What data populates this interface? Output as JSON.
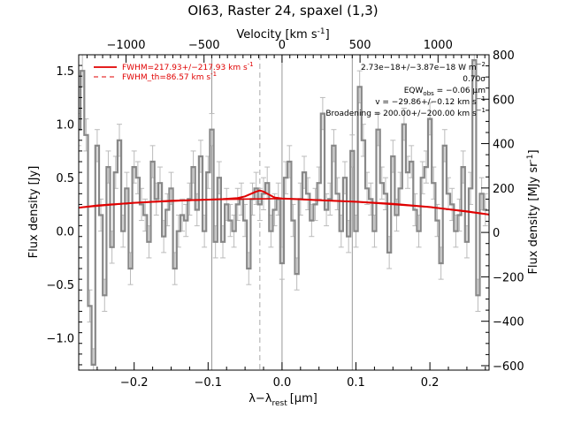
{
  "chart_data": {
    "type": "line",
    "title": "OI63, Raster 24, spaxel (1,3)",
    "xlabel": "λ−λ",
    "xlabel_sub": "rest",
    "xlabel_unit": "[μm]",
    "ylabel_left": "Flux density [Jy]",
    "ylabel_right": "Flux density [MJy sr",
    "ylabel_right_sup": "-1",
    "ylabel_right_close": "]",
    "xlabel_top": "Velocity [km s",
    "xlabel_top_sup": "-1",
    "xlabel_top_close": "]",
    "xlim": [
      -0.275,
      0.28
    ],
    "ylim": [
      -1.3,
      1.65
    ],
    "ylim_right": [
      -620,
      800
    ],
    "x_ticks": [
      -0.2,
      -0.1,
      0.0,
      0.1,
      0.2
    ],
    "x_tick_labels": [
      "−0.2",
      "−0.1",
      "0.0",
      "0.1",
      "0.2"
    ],
    "y_ticks": [
      -1.0,
      -0.5,
      0.0,
      0.5,
      1.0,
      1.5
    ],
    "y_tick_labels": [
      "−1.0",
      "−0.5",
      "0.0",
      "0.5",
      "1.0",
      "1.5"
    ],
    "y_right_ticks": [
      -600,
      -400,
      -200,
      0,
      200,
      400,
      600,
      800
    ],
    "y_right_tick_labels": [
      "−600",
      "−400",
      "−200",
      "0",
      "200",
      "400",
      "600",
      "800"
    ],
    "velocity_ticks": [
      -1000,
      -500,
      0,
      500,
      1000
    ],
    "velocity_tick_labels": [
      "−1000",
      "−500",
      "0",
      "500",
      "1000"
    ],
    "velocity_scale_um_per_kms": 0.000211,
    "vlines_solid": [
      -0.095,
      0.0,
      0.095
    ],
    "vline_dashed": -0.03,
    "grid": false,
    "legend_position": "top-left",
    "legend": [
      {
        "label": "FWHM=217.93+/−217.93 km s",
        "label_sup": "-1",
        "style": "solid"
      },
      {
        "label": "FWHM_th=86.57 km s",
        "label_sup": "-1",
        "style": "dashed"
      }
    ],
    "annotations": [
      {
        "text": "2.73e−18+/−3.87e−18 W m",
        "sup": "−2"
      },
      {
        "text": "0.70σ",
        "sup": ""
      },
      {
        "text": "EQW",
        "sub": "obs",
        "rest": " = −0.06 μm"
      },
      {
        "text": "v = −29.86+/−0.12 km s",
        "sup": "−1"
      },
      {
        "text": "Broadening = 200.00+/−200.00 km s",
        "sup": "−1"
      }
    ],
    "series": [
      {
        "kind": "data",
        "x": [
          -0.275,
          -0.27,
          -0.265,
          -0.26,
          -0.255,
          -0.25,
          -0.245,
          -0.24,
          -0.235,
          -0.23,
          -0.225,
          -0.22,
          -0.215,
          -0.21,
          -0.205,
          -0.2,
          -0.195,
          -0.19,
          -0.185,
          -0.18,
          -0.175,
          -0.17,
          -0.165,
          -0.16,
          -0.155,
          -0.15,
          -0.145,
          -0.14,
          -0.135,
          -0.13,
          -0.125,
          -0.12,
          -0.115,
          -0.11,
          -0.105,
          -0.1,
          -0.095,
          -0.09,
          -0.085,
          -0.08,
          -0.075,
          -0.07,
          -0.065,
          -0.06,
          -0.055,
          -0.05,
          -0.045,
          -0.04,
          -0.035,
          -0.03,
          -0.025,
          -0.02,
          -0.015,
          -0.01,
          -0.005,
          0.0,
          0.005,
          0.01,
          0.015,
          0.02,
          0.025,
          0.03,
          0.035,
          0.04,
          0.045,
          0.05,
          0.055,
          0.06,
          0.065,
          0.07,
          0.075,
          0.08,
          0.085,
          0.09,
          0.095,
          0.1,
          0.105,
          0.11,
          0.115,
          0.12,
          0.125,
          0.13,
          0.135,
          0.14,
          0.145,
          0.15,
          0.155,
          0.16,
          0.165,
          0.17,
          0.175,
          0.18,
          0.185,
          0.19,
          0.195,
          0.2,
          0.205,
          0.21,
          0.215,
          0.22,
          0.225,
          0.23,
          0.235,
          0.24,
          0.245,
          0.25,
          0.255,
          0.26,
          0.265,
          0.27,
          0.275
        ],
        "y": [
          0.95,
          1.5,
          0.9,
          -0.7,
          -1.25,
          0.8,
          0.15,
          -0.6,
          0.6,
          -0.15,
          0.55,
          0.85,
          0.0,
          0.4,
          -0.35,
          0.6,
          0.5,
          0.25,
          0.15,
          -0.1,
          0.65,
          0.3,
          0.45,
          -0.05,
          0.2,
          0.4,
          -0.35,
          0.0,
          0.15,
          0.1,
          0.3,
          0.6,
          0.2,
          0.7,
          0.0,
          0.55,
          0.95,
          -0.1,
          0.5,
          -0.1,
          0.25,
          0.1,
          0.0,
          0.25,
          0.3,
          0.1,
          -0.35,
          0.3,
          0.4,
          0.25,
          0.35,
          0.45,
          0.0,
          0.2,
          0.3,
          -0.3,
          0.5,
          0.65,
          0.1,
          -0.4,
          0.3,
          0.55,
          0.35,
          0.1,
          0.25,
          0.45,
          1.1,
          0.2,
          0.3,
          0.8,
          0.35,
          0.0,
          0.5,
          -0.05,
          0.75,
          0.0,
          1.35,
          0.85,
          0.4,
          0.3,
          0.0,
          0.95,
          0.45,
          0.35,
          -0.2,
          0.7,
          0.15,
          0.4,
          1.0,
          0.55,
          0.65,
          0.2,
          0.0,
          0.5,
          0.6,
          1.05,
          0.45,
          0.1,
          -0.3,
          0.8,
          0.35,
          0.25,
          0.0,
          0.15,
          0.6,
          -0.1,
          0.4,
          1.6,
          -0.6,
          0.35,
          0.2
        ],
        "err": 0.15,
        "color": "#888888"
      },
      {
        "kind": "fit",
        "name": "FWHM=217.93+/−217.93 km s-1",
        "x": [
          -0.275,
          -0.25,
          -0.2,
          -0.15,
          -0.1,
          -0.08,
          -0.06,
          -0.05,
          -0.04,
          -0.035,
          -0.03,
          -0.025,
          -0.02,
          -0.01,
          0.0,
          0.02,
          0.05,
          0.1,
          0.15,
          0.2,
          0.25,
          0.28
        ],
        "y": [
          0.22,
          0.24,
          0.265,
          0.285,
          0.295,
          0.3,
          0.31,
          0.325,
          0.355,
          0.37,
          0.38,
          0.37,
          0.35,
          0.315,
          0.305,
          0.3,
          0.29,
          0.275,
          0.255,
          0.225,
          0.185,
          0.155
        ],
        "color": "#e00000"
      },
      {
        "kind": "continuum",
        "x": [
          -0.275,
          -0.2,
          -0.1,
          0.0,
          0.1,
          0.2,
          0.28
        ],
        "y": [
          0.22,
          0.265,
          0.295,
          0.305,
          0.275,
          0.225,
          0.155
        ],
        "color": "#e00000"
      }
    ]
  }
}
